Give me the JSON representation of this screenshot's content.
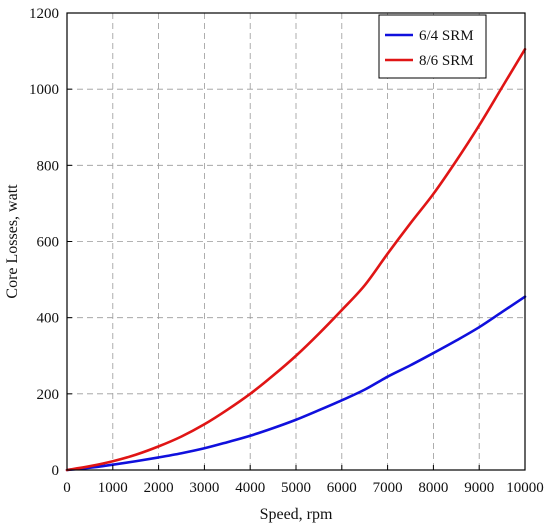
{
  "chart_data": {
    "type": "line",
    "xlabel": "Speed, rpm",
    "ylabel": "Core Losses, watt",
    "xlim": [
      0,
      10000
    ],
    "ylim": [
      0,
      1200
    ],
    "xticks": [
      0,
      1000,
      2000,
      3000,
      4000,
      5000,
      6000,
      7000,
      8000,
      9000,
      10000
    ],
    "yticks": [
      0,
      200,
      400,
      600,
      800,
      1000,
      1200
    ],
    "grid": true,
    "grid_style": "dashed",
    "legend_position": "top-right",
    "x": [
      0,
      500,
      1000,
      1500,
      2000,
      2500,
      3000,
      3500,
      4000,
      4500,
      5000,
      5500,
      6000,
      6500,
      7000,
      7500,
      8000,
      8500,
      9000,
      9500,
      10000
    ],
    "series": [
      {
        "name": "6/4 SRM",
        "color": "#1010dd",
        "values": [
          0,
          6,
          14,
          23,
          33,
          44,
          57,
          73,
          90,
          110,
          132,
          157,
          183,
          211,
          245,
          275,
          307,
          340,
          375,
          415,
          455
        ]
      },
      {
        "name": "8/6 SRM",
        "color": "#e01515",
        "values": [
          0,
          10,
          23,
          40,
          62,
          88,
          120,
          158,
          200,
          248,
          300,
          358,
          420,
          485,
          568,
          648,
          725,
          812,
          905,
          1005,
          1105
        ]
      }
    ]
  }
}
